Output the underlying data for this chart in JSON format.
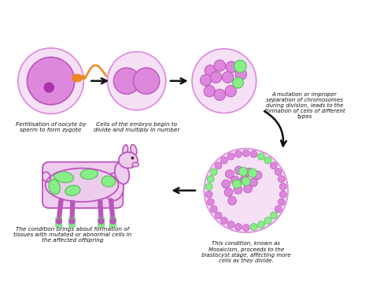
{
  "background_color": "#ffffff",
  "colors": {
    "purple_dark": "#bb55bb",
    "purple_medium": "#dd88dd",
    "purple_light": "#eeccee",
    "purple_very_light": "#f5e0f5",
    "green": "#88ee88",
    "green_dark": "#55bb55",
    "orange": "#ee8822",
    "arrow_color": "#111111",
    "text_color": "#111111"
  },
  "texts": {
    "label1": "Fertilisation of oocyte by\nsperm to form zygote",
    "label2": "Cells of the embryo begin to\ndivide and multiply in number",
    "label3": "A mutation or improper\nseparation of chromosomes\nduring division, leads to the\nformation of cells of different\ntypes",
    "label4": "This condition, known as\nMosaicism, proceeds to the\nblastocyst stage, affecting more\ncells as they divide.",
    "label5": "The condition brings about formation of\ntissues with mutated or abnormal cells in\nthe affected offspring"
  }
}
